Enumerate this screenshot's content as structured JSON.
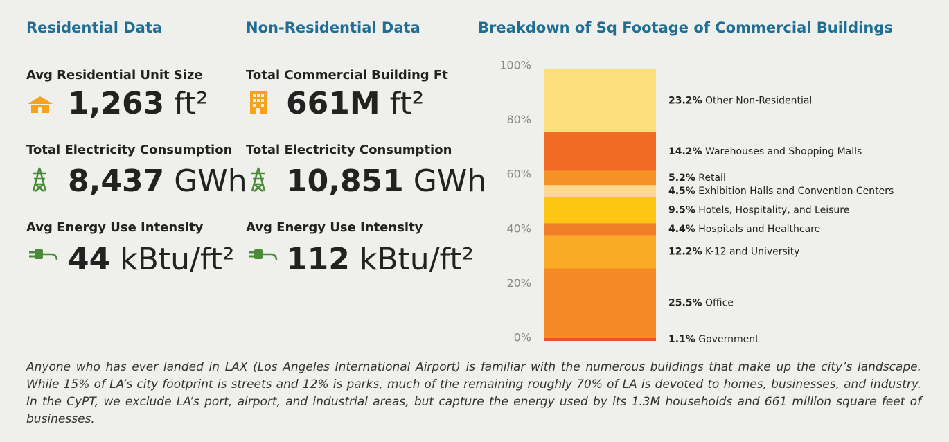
{
  "residential": {
    "title": "Residential Data",
    "stats": [
      {
        "label": "Avg Residential Unit Size",
        "value": "1,263",
        "unit": "ft²"
      },
      {
        "label": "Total Electricity Consumption",
        "value": "8,437",
        "unit": "GWh"
      },
      {
        "label": "Avg Energy Use Intensity",
        "value": "44",
        "unit": "kBtu/ft²"
      }
    ]
  },
  "non_residential": {
    "title": "Non-Residential Data",
    "stats": [
      {
        "label": "Total Commercial Building Ft",
        "value": "661M",
        "unit": "ft²"
      },
      {
        "label": "Total Electricity Consumption",
        "value": "10,851",
        "unit": "GWh"
      },
      {
        "label": "Avg Energy Use Intensity",
        "value": "112",
        "unit": "kBtu/ft²"
      }
    ]
  },
  "chart_data": {
    "type": "stacked_bar",
    "title": "Breakdown of Sq Footage of Commercial Buildings",
    "ylim": [
      0,
      100
    ],
    "yticks": [
      {
        "value": 0,
        "label": "0%"
      },
      {
        "value": 20,
        "label": "20%"
      },
      {
        "value": 40,
        "label": "40%"
      },
      {
        "value": 60,
        "label": "60%"
      },
      {
        "value": 80,
        "label": "80%"
      },
      {
        "value": 100,
        "label": "100%"
      }
    ],
    "series": [
      {
        "name": "Government",
        "color": "#e8532a",
        "values": [
          1.1
        ],
        "value_labels": [
          "1.1%"
        ]
      },
      {
        "name": "Office",
        "color": "#f58a25",
        "values": [
          25.5
        ],
        "value_labels": [
          "25.5%"
        ]
      },
      {
        "name": "K-12 and University",
        "color": "#f9aa26",
        "values": [
          12.2
        ],
        "value_labels": [
          "12.2%"
        ]
      },
      {
        "name": "Hospitals and Healthcare",
        "color": "#f07f26",
        "values": [
          4.4
        ],
        "value_labels": [
          "4.4%"
        ]
      },
      {
        "name": "Hotels, Hospitality, and Leisure",
        "color": "#fdc612",
        "values": [
          9.5
        ],
        "value_labels": [
          "9.5%"
        ]
      },
      {
        "name": "Exhibition Halls and Convention Centers",
        "color": "#fdd78e",
        "values": [
          4.5
        ],
        "value_labels": [
          "4.5%"
        ]
      },
      {
        "name": "Retail",
        "color": "#f69223",
        "values": [
          5.2
        ],
        "value_labels": [
          "5.2%"
        ]
      },
      {
        "name": "Warehouses and Shopping Malls",
        "color": "#f26b22",
        "values": [
          14.2
        ],
        "value_labels": [
          "14.2%"
        ]
      },
      {
        "name": "Other Non-Residential",
        "color": "#fde07d",
        "values": [
          23.2
        ],
        "value_labels": [
          "23.2%"
        ]
      }
    ]
  },
  "paragraph": "Anyone who has ever landed in LAX (Los Angeles International Airport) is familiar with the numerous buildings that make up the city’s landscape. While 15% of LA’s city footprint is streets and 12% is parks, much of the remaining roughly 70% of LA is devoted to homes, businesses, and industry. In the CyPT, we exclude LA’s port, airport, and industrial areas, but capture the energy used by its 1.3M households and 661 million square feet of businesses."
}
